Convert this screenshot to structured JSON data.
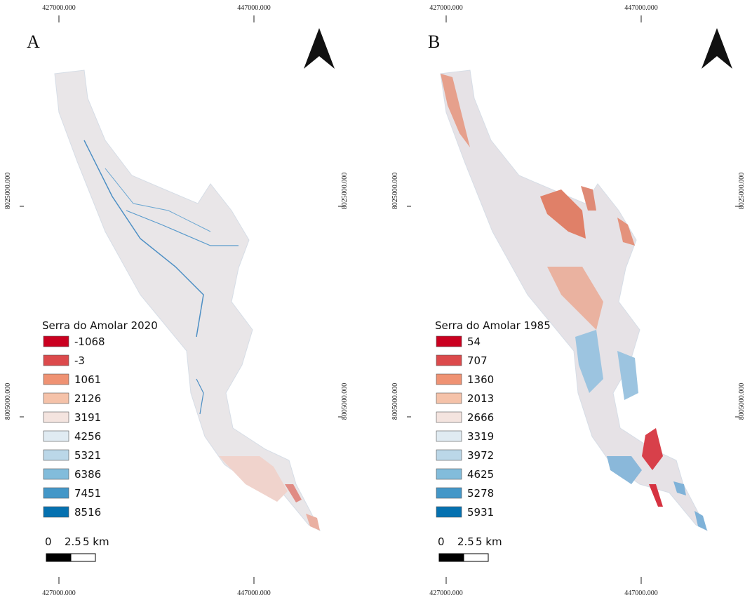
{
  "panels": [
    {
      "letter": "A",
      "x_coords": [
        "427000.000",
        "447000.000"
      ],
      "y_coords": [
        "8025000.000",
        "8005000.000"
      ],
      "legend": {
        "title": "Serra do Amolar 2020",
        "items": [
          {
            "label": "-1068",
            "color": "#ca0020"
          },
          {
            "label": "-3",
            "color": "#dc4a4c"
          },
          {
            "label": "1061",
            "color": "#ef9273"
          },
          {
            "label": "2126",
            "color": "#f5c2a9"
          },
          {
            "label": "3191",
            "color": "#f4e4df"
          },
          {
            "label": "4256",
            "color": "#e0ebf2"
          },
          {
            "label": "5321",
            "color": "#bbd7e8"
          },
          {
            "label": "6386",
            "color": "#82bcdb"
          },
          {
            "label": "7451",
            "color": "#4397c8"
          },
          {
            "label": "8516",
            "color": "#0571b0"
          }
        ]
      },
      "scale": [
        "0",
        "2.5",
        "5 km"
      ]
    },
    {
      "letter": "B",
      "x_coords": [
        "427000.000",
        "447000.000"
      ],
      "y_coords": [
        "8025000.000",
        "8005000.000"
      ],
      "legend": {
        "title": "Serra do Amolar 1985",
        "items": [
          {
            "label": "54",
            "color": "#ca0020"
          },
          {
            "label": "707",
            "color": "#dc4a4c"
          },
          {
            "label": "1360",
            "color": "#ef9273"
          },
          {
            "label": "2013",
            "color": "#f5c2a9"
          },
          {
            "label": "2666",
            "color": "#f4e4df"
          },
          {
            "label": "3319",
            "color": "#e0ebf2"
          },
          {
            "label": "3972",
            "color": "#bbd7e8"
          },
          {
            "label": "4625",
            "color": "#82bcdb"
          },
          {
            "label": "5278",
            "color": "#4397c8"
          },
          {
            "label": "5931",
            "color": "#0571b0"
          }
        ]
      },
      "scale": [
        "0",
        "2.5",
        "5 km"
      ]
    }
  ]
}
